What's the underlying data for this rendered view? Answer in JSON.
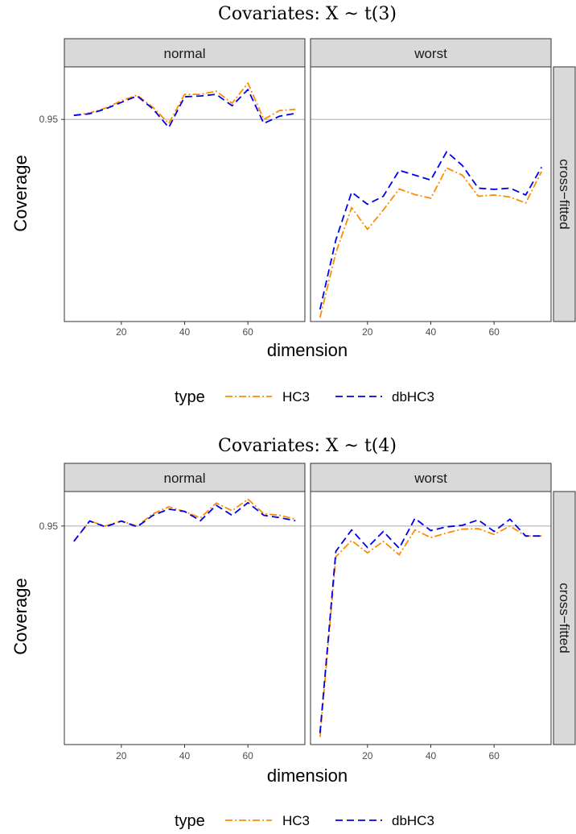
{
  "chart_data": [
    {
      "type": "line",
      "title": "Covariates:  X ~ t(3)",
      "xlabel": "dimension",
      "ylabel": "Coverage",
      "row_strip": "cross−fitted",
      "facets": [
        "normal",
        "worst"
      ],
      "x_ticks": [
        "20",
        "40",
        "60"
      ],
      "y_ticks": [
        "0.95"
      ],
      "xlim": [
        2,
        78
      ],
      "ylim": [
        0.9,
        0.963
      ],
      "grid": "reference line at 0.95",
      "legend": {
        "title": "type",
        "position": "bottom",
        "entries": [
          "HC3",
          "dbHC3"
        ]
      },
      "x": [
        5,
        10,
        15,
        20,
        25,
        30,
        35,
        40,
        45,
        50,
        55,
        60,
        65,
        70,
        75
      ],
      "panels": [
        {
          "facet": "normal",
          "series": [
            {
              "name": "HC3",
              "values": [
                0.951,
                0.9516,
                0.9528,
                0.9546,
                0.956,
                0.953,
                0.949,
                0.9562,
                0.9562,
                0.957,
                0.954,
                0.959,
                0.95,
                0.9522,
                0.9525
              ]
            },
            {
              "name": "dbHC3",
              "values": [
                0.951,
                0.9514,
                0.9526,
                0.9542,
                0.9558,
                0.9526,
                0.948,
                0.9556,
                0.9558,
                0.9562,
                0.9534,
                0.9574,
                0.949,
                0.9508,
                0.9515
              ]
            }
          ]
        },
        {
          "facet": "worst",
          "series": [
            {
              "name": "HC3",
              "values": [
                0.901,
                0.917,
                0.9282,
                0.9228,
                0.9276,
                0.9328,
                0.9314,
                0.9305,
                0.938,
                0.9362,
                0.931,
                0.9313,
                0.9308,
                0.9293,
                0.9371
              ]
            },
            {
              "name": "dbHC3",
              "values": [
                0.903,
                0.9202,
                0.932,
                0.929,
                0.931,
                0.9374,
                0.9362,
                0.935,
                0.942,
                0.9386,
                0.933,
                0.9327,
                0.933,
                0.9313,
                0.9382
              ]
            }
          ]
        }
      ]
    },
    {
      "type": "line",
      "title": "Covariates:  X ~ t(4)",
      "xlabel": "dimension",
      "ylabel": "Coverage",
      "row_strip": "cross−fitted",
      "facets": [
        "normal",
        "worst"
      ],
      "x_ticks": [
        "20",
        "40",
        "60"
      ],
      "y_ticks": [
        "0.95"
      ],
      "xlim": [
        2,
        78
      ],
      "ylim": [
        0.893,
        0.959
      ],
      "grid": "reference line at 0.95",
      "legend": {
        "title": "type",
        "position": "bottom",
        "entries": [
          "HC3",
          "dbHC3"
        ]
      },
      "x": [
        5,
        10,
        15,
        20,
        25,
        30,
        35,
        40,
        45,
        50,
        55,
        60,
        65,
        70,
        75
      ],
      "panels": [
        {
          "facet": "normal",
          "series": [
            {
              "name": "HC3",
              "values": [
                0.946,
                0.9513,
                0.95,
                0.9513,
                0.95,
                0.9532,
                0.955,
                0.9538,
                0.9521,
                0.956,
                0.954,
                0.957,
                0.9532,
                0.9528,
                0.9518
              ]
            },
            {
              "name": "dbHC3",
              "values": [
                0.946,
                0.9513,
                0.9498,
                0.9513,
                0.9498,
                0.9528,
                0.9544,
                0.9538,
                0.9514,
                0.9554,
                0.9528,
                0.9561,
                0.9528,
                0.9522,
                0.9514
              ]
            }
          ]
        },
        {
          "facet": "worst",
          "series": [
            {
              "name": "HC3",
              "values": [
                0.895,
                0.942,
                0.9462,
                0.943,
                0.946,
                0.9425,
                0.949,
                0.947,
                0.9482,
                0.9492,
                0.9493,
                0.9478,
                0.95,
                0.9474,
                0.9474
              ]
            },
            {
              "name": "dbHC3",
              "values": [
                0.896,
                0.9434,
                0.949,
                0.9444,
                0.9486,
                0.9442,
                0.952,
                0.9488,
                0.9498,
                0.9502,
                0.9516,
                0.9486,
                0.9518,
                0.9474,
                0.9474
              ]
            }
          ]
        }
      ]
    }
  ],
  "colors": {
    "HC3": "#FF8C00",
    "dbHC3": "#0000EE",
    "strip": "#D9D9D9",
    "ref_line": "#B3B3B3"
  }
}
